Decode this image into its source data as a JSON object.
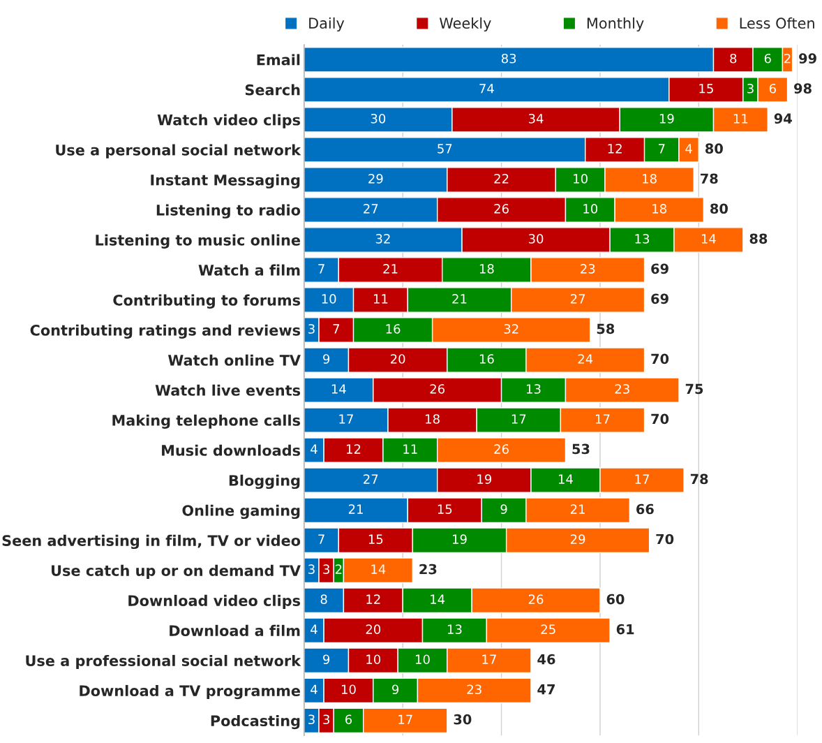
{
  "chart_data": {
    "type": "bar",
    "orientation": "horizontal",
    "stacked": true,
    "data_labels": true,
    "categories": [
      "Email",
      "Search",
      "Watch video clips",
      "Use a personal social network",
      "Instant Messaging",
      "Listening to radio",
      "Listening to music online",
      "Watch a film",
      "Contributing to forums",
      "Contributing ratings and reviews",
      "Watch online TV",
      "Watch live events",
      "Making telephone calls",
      "Music downloads",
      "Blogging",
      "Online gaming",
      "Seen advertising in film, TV or video",
      "Use catch up or on demand TV",
      "Download video clips",
      "Download a film",
      "Use a professional social network",
      "Download a TV programme",
      "Podcasting"
    ],
    "series": [
      {
        "name": "Daily",
        "color": "#0070c0",
        "values": [
          83,
          74,
          30,
          57,
          29,
          27,
          32,
          7,
          10,
          3,
          9,
          14,
          17,
          4,
          27,
          21,
          7,
          3,
          8,
          4,
          9,
          4,
          3
        ]
      },
      {
        "name": "Weekly",
        "color": "#c00000",
        "values": [
          8,
          15,
          34,
          12,
          22,
          26,
          30,
          21,
          11,
          7,
          20,
          26,
          18,
          12,
          19,
          15,
          15,
          3,
          12,
          20,
          10,
          10,
          3
        ]
      },
      {
        "name": "Monthly",
        "color": "#008a00",
        "values": [
          6,
          3,
          19,
          7,
          10,
          10,
          13,
          18,
          21,
          16,
          16,
          13,
          17,
          11,
          14,
          9,
          19,
          2,
          14,
          13,
          10,
          9,
          6
        ]
      },
      {
        "name": "Less Often",
        "color": "#ff6600",
        "values": [
          2,
          6,
          11,
          4,
          18,
          18,
          14,
          23,
          27,
          32,
          24,
          23,
          17,
          26,
          17,
          21,
          29,
          14,
          26,
          25,
          17,
          23,
          17
        ]
      }
    ],
    "totals": [
      "99",
      "98",
      "94",
      "80",
      "78",
      "80",
      "88",
      "69",
      "69",
      "58",
      "70",
      "75",
      "70",
      "53",
      "78",
      "66",
      "70",
      "23",
      "60",
      "61",
      "46",
      "47",
      "30"
    ],
    "xlim": [
      0,
      100
    ],
    "xticks": [
      {
        "value": 0,
        "label": null
      },
      {
        "value": 20,
        "label": null
      },
      {
        "value": 40,
        "label": null
      },
      {
        "value": 60,
        "label": null
      },
      {
        "value": 80,
        "label": null
      },
      {
        "value": 100,
        "label": null
      }
    ],
    "tick_labels": "y",
    "grid": "x",
    "legend": "top"
  }
}
